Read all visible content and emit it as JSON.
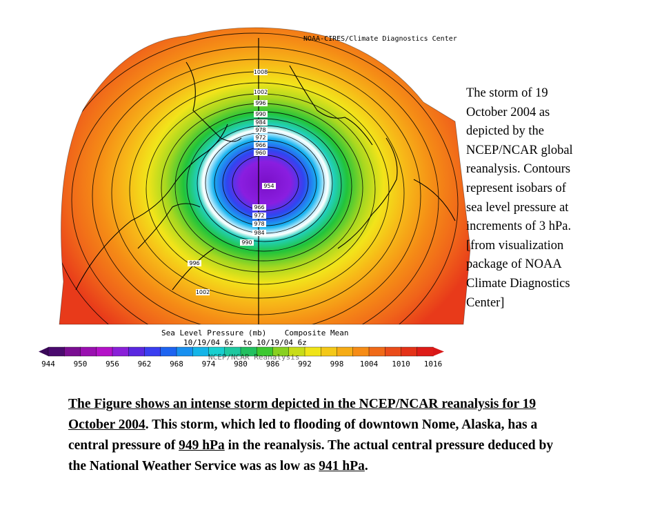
{
  "figure": {
    "credit": "NOAA-CIRES/Climate Diagnostics Center",
    "legend_title": "Sea Level Pressure (mb)    Composite Mean",
    "legend_dates": "10/19/04 6z  to 10/19/04 6z",
    "legend_source": "NCEP/NCAR Reanalysis",
    "colorbar_ticks": [
      "944",
      "950",
      "956",
      "962",
      "968",
      "974",
      "980",
      "986",
      "992",
      "998",
      "1004",
      "1010",
      "1016"
    ],
    "contour_labels_upper": [
      "1008",
      "1002",
      "996",
      "990",
      "984",
      "978",
      "972",
      "966",
      "960"
    ],
    "center_label": "954",
    "contour_labels_lower": [
      "966",
      "972",
      "978",
      "984",
      "990"
    ],
    "other_labels": [
      "996",
      "1002"
    ],
    "colors": {
      "purple_low": "#6a0aa8",
      "blue": "#1e5af0",
      "cyan": "#22d8e6",
      "green": "#2ec83a",
      "yellow": "#f2e81a",
      "orange": "#f59a14",
      "red": "#e8321a"
    }
  },
  "caption": {
    "lines": [
      "The storm of 19",
      "October 2004 as",
      "depicted by the",
      "NCEP/NCAR global",
      "reanalysis.  Contours",
      "represent isobars of",
      "sea level pressure at",
      "increments of 3 hPa.",
      "[from visualization",
      "package of NOAA",
      "Climate Diagnostics",
      "Center]"
    ]
  },
  "paragraph": {
    "part1": "The Figure shows an intense storm depicted in the NCEP/NCAR reanalysis for 19 October 2004",
    "part2": ".  This storm, which led to flooding of downtown Nome, Alaska, has a central pressure of ",
    "value1": "949 hPa",
    "part3": " in the reanalysis.  The actual central pressure deduced by the National Weather Service was as low as ",
    "value2": "941 hPa",
    "part4": "."
  }
}
